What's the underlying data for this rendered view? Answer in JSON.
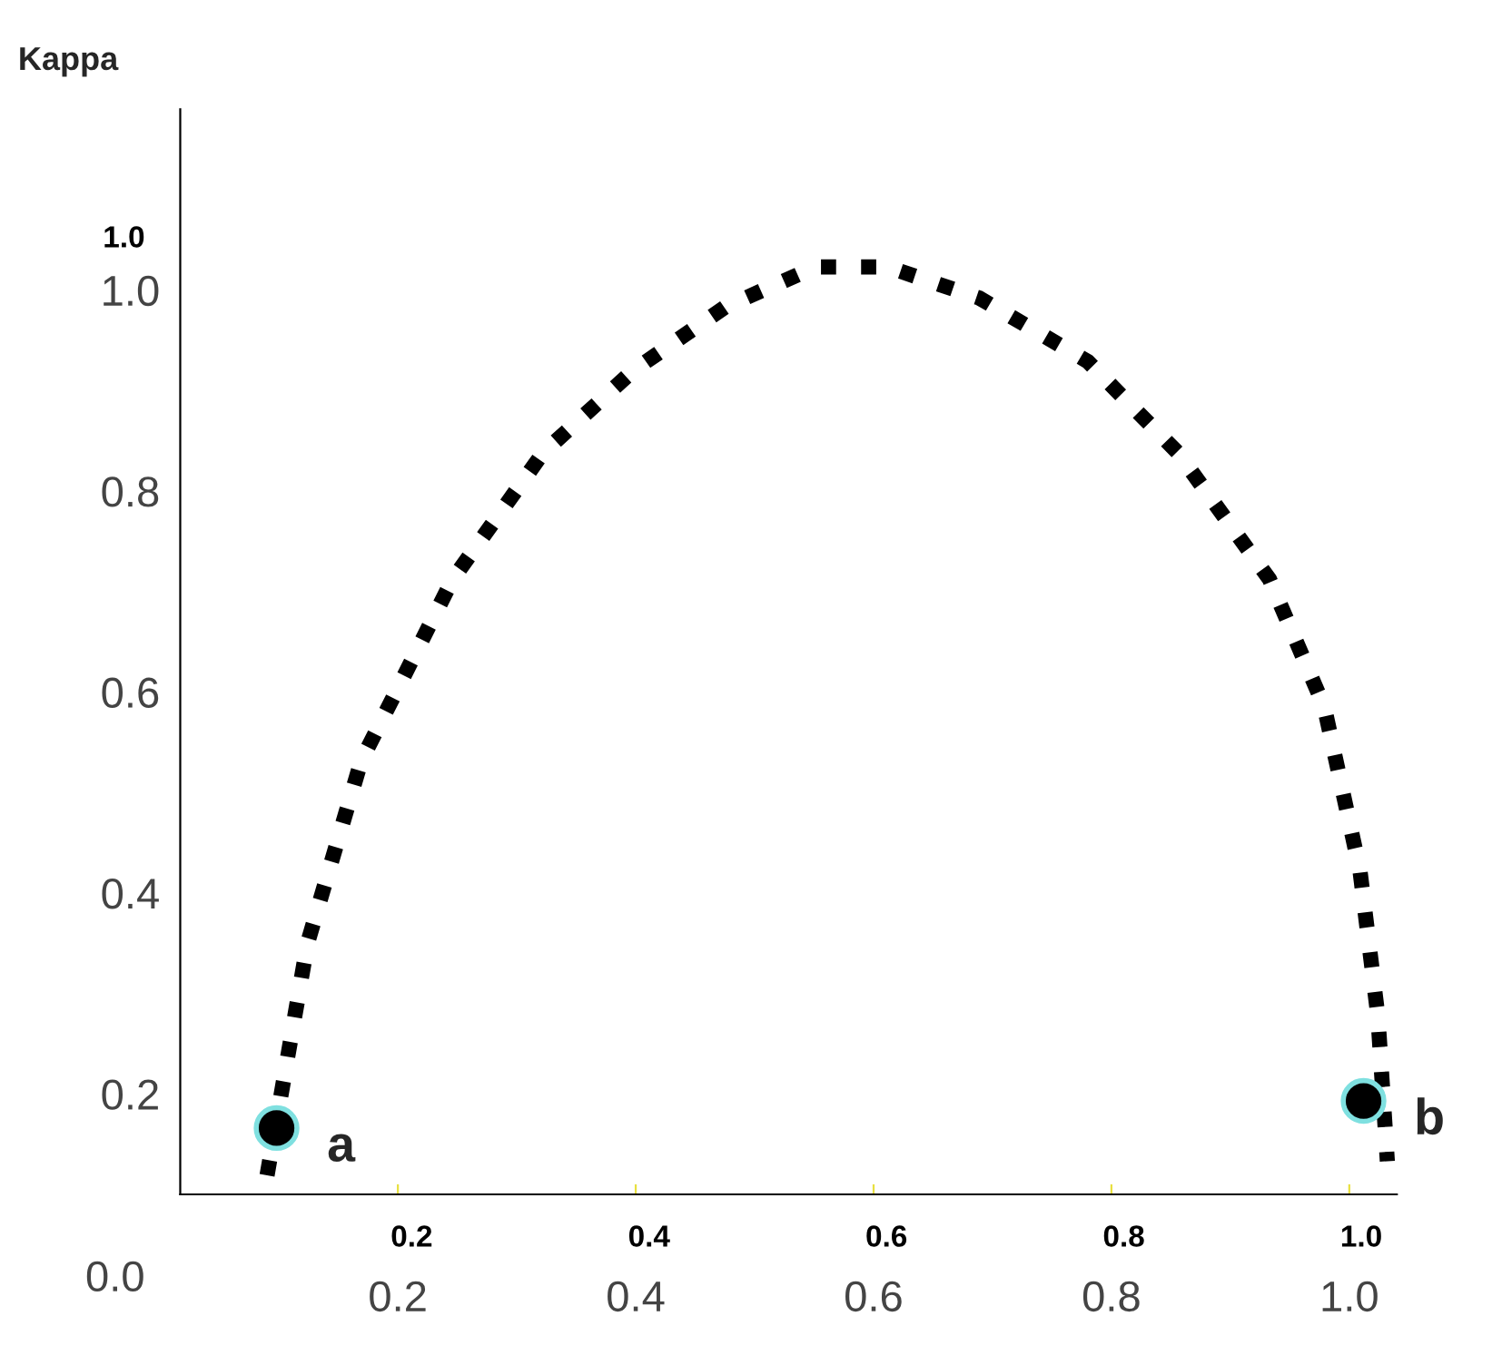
{
  "chart_data": {
    "type": "line",
    "ylabel": "Kappa",
    "xlim": [
      0.017,
      1.04
    ],
    "xticks": [
      0.2,
      0.4,
      0.6,
      0.8,
      {
        "value": 1.0,
        "label": "1.0"
      }
    ],
    "x2lim": [
      0.005,
      1.03
    ],
    "x2ticks": [
      0.2,
      0.4,
      0.6,
      0.8,
      {
        "value": 1.0,
        "label": "1.0"
      }
    ],
    "ylim": [
      0.1,
      1.18
    ],
    "yticks": [
      0.2,
      0.4,
      0.6,
      0.8,
      {
        "value": 1.0,
        "label": "1.0"
      }
    ],
    "series": [
      {
        "color": "#000000",
        "line_style": "dotted",
        "x": [
          0.09,
          0.124,
          0.169,
          0.246,
          0.322,
          0.398,
          0.475,
          0.551,
          0.612,
          0.689,
          0.78,
          0.856,
          0.933,
          0.979,
          1.009,
          1.024,
          1.032
        ],
        "values": [
          0.119,
          0.35,
          0.531,
          0.712,
          0.838,
          0.92,
          0.983,
          1.023,
          1.023,
          0.992,
          0.929,
          0.838,
          0.712,
          0.585,
          0.422,
          0.278,
          0.133
        ]
      },
      {
        "type": "scatter",
        "color": "#000000",
        "marker": "circle",
        "x": [
          0.098,
          1.012
        ],
        "values": [
          0.166,
          0.193
        ]
      }
    ],
    "annotations": [
      {
        "text": "a",
        "x": 0.098,
        "y": 0.166
      },
      {
        "text": "b",
        "x": 1.012,
        "y": 0.193
      },
      "0.0",
      "1.0"
    ],
    "grid": false,
    "legend": false
  }
}
